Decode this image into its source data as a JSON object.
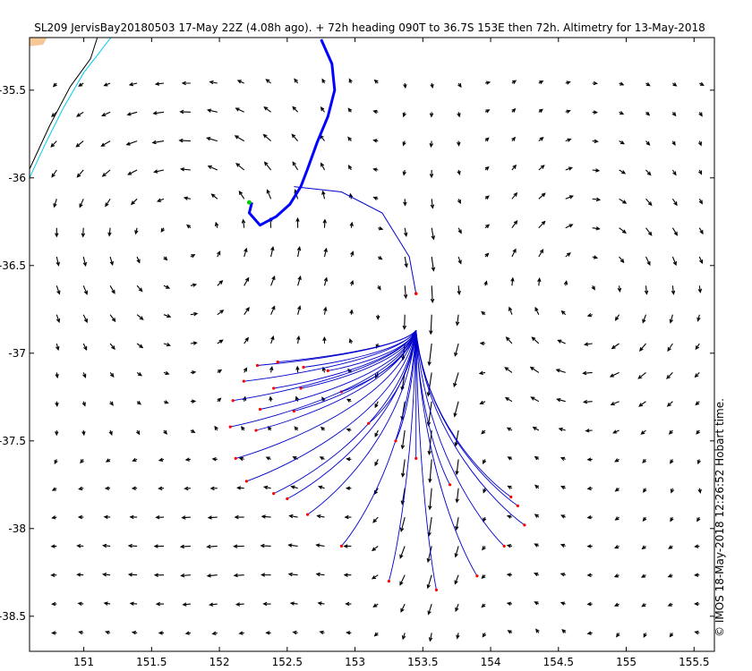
{
  "chart_data": {
    "type": "vector-field",
    "title": "SL209 JervisBay20180503 17-May 22Z (4.08h ago). + 72h heading 090T to 36.7S 153E then 72h. Altimetry for 13-May-2018",
    "side_note": "© IMOS 18-May-2018 12:26:52 Hobart time.",
    "xlabel": "",
    "ylabel": "",
    "xlim": [
      150.6,
      155.65
    ],
    "ylim": [
      -38.7,
      -35.2
    ],
    "xticks": [
      151,
      151.5,
      152,
      152.5,
      153,
      153.5,
      154,
      154.5,
      155,
      155.5
    ],
    "yticks": [
      -35.5,
      -36,
      -36.5,
      -37,
      -37.5,
      -38,
      -38.5
    ],
    "grid": false,
    "colors": {
      "current_arrows": "#000000",
      "glider_track": "#0000ff",
      "trajectories": "#0000cc",
      "trajectory_ends": "#ff0000",
      "glider_position": "#00cc00",
      "coastline": "#000000",
      "isobath": "#00ccee",
      "land": "#f5c896"
    },
    "vector_grid": {
      "lon_start": 150.8,
      "lon_step": 0.1975,
      "lat_start": -35.46,
      "lat_step": -0.165
    },
    "forecast_start": {
      "lon": 153.45,
      "lat": -36.87
    },
    "trajectory_ends": [
      [
        152.28,
        -37.07
      ],
      [
        152.43,
        -37.05
      ],
      [
        152.62,
        -37.08
      ],
      [
        152.8,
        -37.1
      ],
      [
        152.18,
        -37.16
      ],
      [
        152.4,
        -37.2
      ],
      [
        152.6,
        -37.2
      ],
      [
        152.9,
        -37.22
      ],
      [
        152.1,
        -37.27
      ],
      [
        152.3,
        -37.32
      ],
      [
        152.55,
        -37.33
      ],
      [
        152.08,
        -37.42
      ],
      [
        152.27,
        -37.44
      ],
      [
        152.12,
        -37.6
      ],
      [
        152.2,
        -37.73
      ],
      [
        152.4,
        -37.8
      ],
      [
        152.5,
        -37.83
      ],
      [
        152.65,
        -37.92
      ],
      [
        152.9,
        -38.1
      ],
      [
        153.25,
        -38.3
      ],
      [
        153.6,
        -38.35
      ],
      [
        153.9,
        -38.27
      ],
      [
        154.1,
        -38.1
      ],
      [
        154.25,
        -37.98
      ],
      [
        154.2,
        -37.87
      ],
      [
        154.15,
        -37.82
      ],
      [
        153.7,
        -37.75
      ],
      [
        153.45,
        -37.6
      ],
      [
        153.3,
        -37.5
      ],
      [
        153.1,
        -37.4
      ]
    ],
    "glider_track": [
      [
        152.75,
        -35.21
      ],
      [
        152.83,
        -35.35
      ],
      [
        152.85,
        -35.5
      ],
      [
        152.8,
        -35.65
      ],
      [
        152.72,
        -35.8
      ],
      [
        152.65,
        -35.95
      ],
      [
        152.6,
        -36.05
      ],
      [
        152.52,
        -36.15
      ],
      [
        152.42,
        -36.22
      ],
      [
        152.3,
        -36.27
      ],
      [
        152.22,
        -36.2
      ],
      [
        152.24,
        -36.14
      ]
    ],
    "glider_position": {
      "lon": 152.22,
      "lat": -36.14
    },
    "planned_route": [
      [
        152.55,
        -36.05
      ],
      [
        152.9,
        -36.08
      ],
      [
        153.2,
        -36.2
      ],
      [
        153.4,
        -36.45
      ],
      [
        153.45,
        -36.66
      ]
    ],
    "coastline": [
      [
        150.6,
        -35.95
      ],
      [
        150.75,
        -35.7
      ],
      [
        150.9,
        -35.48
      ],
      [
        151.05,
        -35.32
      ],
      [
        151.1,
        -35.2
      ]
    ],
    "isobath": [
      [
        150.6,
        -36.0
      ],
      [
        150.72,
        -35.8
      ],
      [
        150.85,
        -35.6
      ],
      [
        151.0,
        -35.4
      ],
      [
        151.12,
        -35.28
      ],
      [
        151.2,
        -35.2
      ]
    ]
  }
}
